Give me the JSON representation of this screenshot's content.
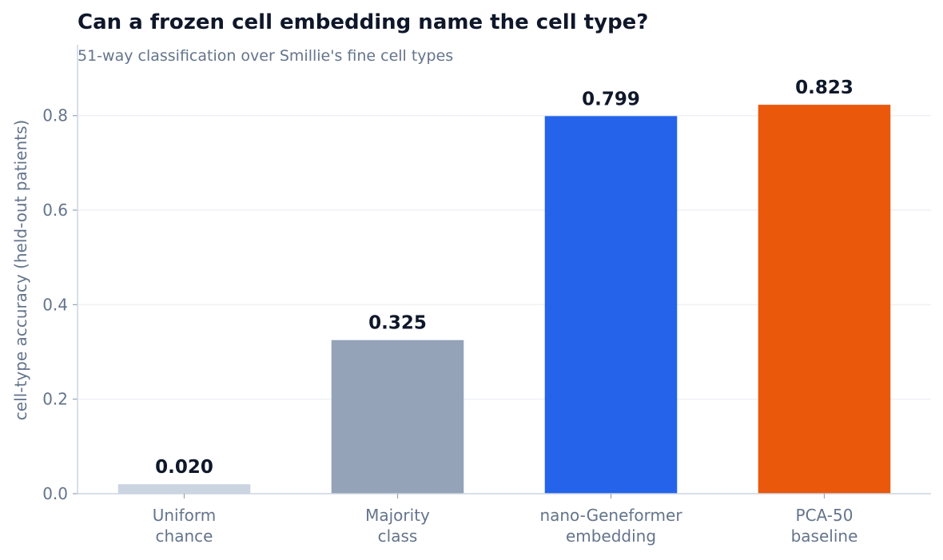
{
  "chart_data": {
    "type": "bar",
    "title": "Can a frozen cell embedding name the cell type?",
    "subtitle": "51-way classification over Smillie's fine cell types",
    "xlabel": "",
    "ylabel": "cell-type accuracy  (held-out patients)",
    "ylim": [
      0,
      0.95
    ],
    "yticks": [
      0.0,
      0.2,
      0.4,
      0.6,
      0.8
    ],
    "ytick_labels": [
      "0.0",
      "0.2",
      "0.4",
      "0.6",
      "0.8"
    ],
    "grid": true,
    "categories": [
      [
        "Uniform",
        "chance"
      ],
      [
        "Majority",
        "class"
      ],
      [
        "nano-Geneformer",
        "embedding"
      ],
      [
        "PCA-50",
        "baseline"
      ]
    ],
    "values": [
      0.02,
      0.325,
      0.799,
      0.823
    ],
    "value_labels": [
      "0.020",
      "0.325",
      "0.799",
      "0.823"
    ],
    "colors": [
      "#cbd5e1",
      "#94a3b8",
      "#2563eb",
      "#ea580c"
    ]
  }
}
